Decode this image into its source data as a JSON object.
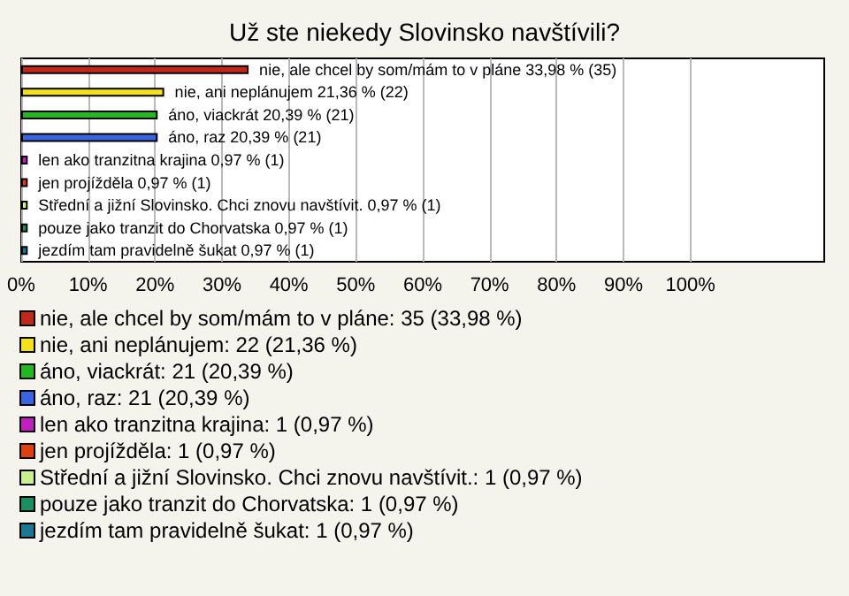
{
  "chart_data": {
    "type": "bar",
    "title": "Už ste niekedy Slovinsko navštívili?",
    "orientation": "horizontal",
    "stacked": true,
    "categories": [
      null,
      null,
      null,
      null,
      null,
      null,
      null,
      null,
      null
    ],
    "series": [
      {
        "name": "nie, ale chcel by som/mám to v pláne: 35 (33,98 %)",
        "color": "#c0281a",
        "values": [
          33.98,
          null,
          null,
          null,
          null,
          null,
          null,
          null,
          null
        ],
        "value_labels": [
          "nie, ale chcel by som/mám to v pláne 33,98 % (35)",
          null,
          null,
          null,
          null,
          null,
          null,
          null,
          null
        ]
      },
      {
        "name": "nie, ani neplánujem: 22 (21,36 %)",
        "color": "#f5e11a",
        "values": [
          null,
          21.36,
          null,
          null,
          null,
          null,
          null,
          null,
          null
        ],
        "value_labels": [
          null,
          "nie, ani neplánujem 21,36 % (22)",
          null,
          null,
          null,
          null,
          null,
          null,
          null
        ]
      },
      {
        "name": "áno, viackrát: 21 (20,39 %)",
        "color": "#22b822",
        "values": [
          null,
          null,
          20.39,
          null,
          null,
          null,
          null,
          null,
          null
        ],
        "value_labels": [
          null,
          null,
          "áno, viackrát 20,39 % (21)",
          null,
          null,
          null,
          null,
          null,
          null
        ]
      },
      {
        "name": "áno, raz: 21 (20,39 %)",
        "color": "#3a64e0",
        "values": [
          null,
          null,
          null,
          20.39,
          null,
          null,
          null,
          null,
          null
        ],
        "value_labels": [
          null,
          null,
          null,
          "áno, raz 20,39 % (21)",
          null,
          null,
          null,
          null,
          null
        ]
      },
      {
        "name": "len ako tranzitna krajina: 1 (0,97 %)",
        "color": "#c020c0",
        "values": [
          null,
          null,
          null,
          null,
          0.97,
          null,
          null,
          null,
          null
        ],
        "value_labels": [
          null,
          null,
          null,
          null,
          "len ako tranzitna krajina 0,97 % (1)",
          null,
          null,
          null,
          null
        ]
      },
      {
        "name": "jen projížděla: 1 (0,97 %)",
        "color": "#e04010",
        "values": [
          null,
          null,
          null,
          null,
          null,
          0.97,
          null,
          null,
          null
        ],
        "value_labels": [
          null,
          null,
          null,
          null,
          null,
          "jen projížděla 0,97 % (1)",
          null,
          null,
          null
        ]
      },
      {
        "name": "Střední a jižní Slovinsko. Chci znovu navštívit.: 1 (0,97 %)",
        "color": "#c8f08c",
        "values": [
          null,
          null,
          null,
          null,
          null,
          null,
          0.97,
          null,
          null
        ],
        "value_labels": [
          null,
          null,
          null,
          null,
          null,
          null,
          "Střední a jižní Slovinsko. Chci znovu navštívit. 0,97 % (1)",
          null,
          null
        ]
      },
      {
        "name": "pouze jako tranzit do Chorvatska: 1 (0,97 %)",
        "color": "#1a9060",
        "values": [
          null,
          null,
          null,
          null,
          null,
          null,
          null,
          0.97,
          null
        ],
        "value_labels": [
          null,
          null,
          null,
          null,
          null,
          null,
          null,
          "pouze jako tranzit do Chorvatska 0,97 % (1)",
          null
        ]
      },
      {
        "name": "jezdím tam pravidelně šukat: 1 (0,97 %)",
        "color": "#1a7890",
        "values": [
          null,
          null,
          null,
          null,
          null,
          null,
          null,
          null,
          0.97
        ],
        "value_labels": [
          null,
          null,
          null,
          null,
          null,
          null,
          null,
          null,
          "jezdím tam pravidelně šukat 0,97 % (1)"
        ]
      }
    ],
    "xlim": [
      0,
      120
    ],
    "xticks": [
      {
        "value": 0,
        "label": "0%"
      },
      {
        "value": 10,
        "label": "10%"
      },
      {
        "value": 20,
        "label": "20%"
      },
      {
        "value": 30,
        "label": "30%"
      },
      {
        "value": 40,
        "label": "40%"
      },
      {
        "value": 50,
        "label": "50%"
      },
      {
        "value": 60,
        "label": "60%"
      },
      {
        "value": 70,
        "label": "70%"
      },
      {
        "value": 80,
        "label": "80%"
      },
      {
        "value": 90,
        "label": "90%"
      },
      {
        "value": 100,
        "label": "100%"
      }
    ],
    "grid": "x",
    "legend": "bottom",
    "tick_labels": "x"
  }
}
